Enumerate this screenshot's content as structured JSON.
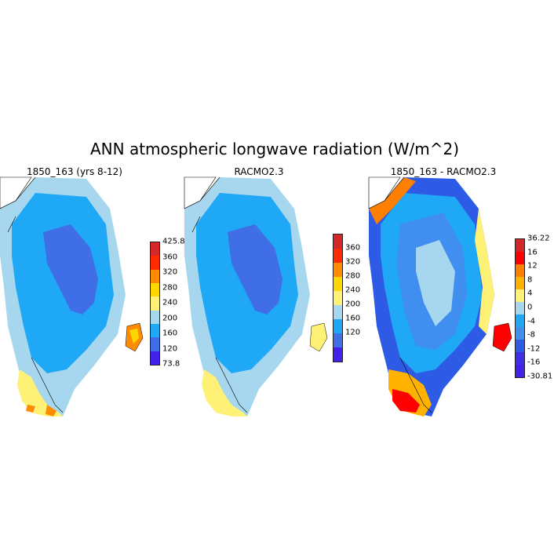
{
  "title": "ANN atmospheric longwave radiation (W/m^2)",
  "panels": [
    {
      "title": "1850_163 (yrs 8-12)",
      "colorbar": {
        "labels": [
          "425.8",
          "360",
          "320",
          "280",
          "240",
          "200",
          "160",
          "120",
          "73.8"
        ],
        "colors": [
          "#d62728",
          "#ff2a00",
          "#ff8c00",
          "#ffd700",
          "#fff176",
          "#a6d7ee",
          "#1ea8f5",
          "#3f6ee6",
          "#4421e8"
        ]
      }
    },
    {
      "title": "RACMO2.3",
      "colorbar": {
        "labels": [
          "360",
          "320",
          "280",
          "240",
          "200",
          "160",
          "120"
        ],
        "colors": [
          "#d62728",
          "#ff2a00",
          "#ff8c00",
          "#ffd700",
          "#fff176",
          "#a6d7ee",
          "#1ea8f5",
          "#3f6ee6",
          "#4421e8"
        ]
      }
    },
    {
      "title": "1850_163 - RACMO2.3",
      "colorbar": {
        "labels": [
          "36.22",
          "16",
          "12",
          "8",
          "4",
          "0",
          "-4",
          "-8",
          "-12",
          "-16",
          "-30.81"
        ],
        "colors": [
          "#d62728",
          "#ff0000",
          "#ff7f00",
          "#ffb300",
          "#fff176",
          "#a6d7ee",
          "#1ea8f5",
          "#3f8ef0",
          "#2e5be6",
          "#3f2fe6",
          "#4421e8"
        ]
      }
    }
  ]
}
